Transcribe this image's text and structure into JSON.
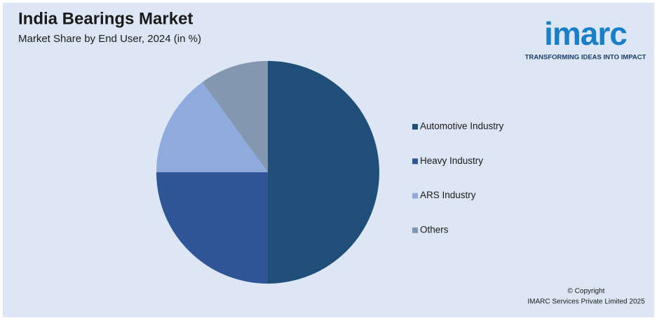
{
  "chart_data": {
    "type": "pie",
    "title": "India Bearings Market",
    "subtitle": "Market Share by End User, 2024 (in %)",
    "categories": [
      "Automotive Industry",
      "Heavy Industry",
      "ARS Industry",
      "Others"
    ],
    "values": [
      50,
      25,
      15,
      10
    ],
    "colors": [
      "#1f4e79",
      "#2f5597",
      "#8faadc",
      "#8497b0"
    ],
    "legend": "right"
  },
  "logo": {
    "name": "imarc",
    "tagline": "TRANSFORMING IDEAS INTO IMPACT"
  },
  "copyright": [
    "© Copyright",
    "IMARC Services Private Limited 2025"
  ]
}
